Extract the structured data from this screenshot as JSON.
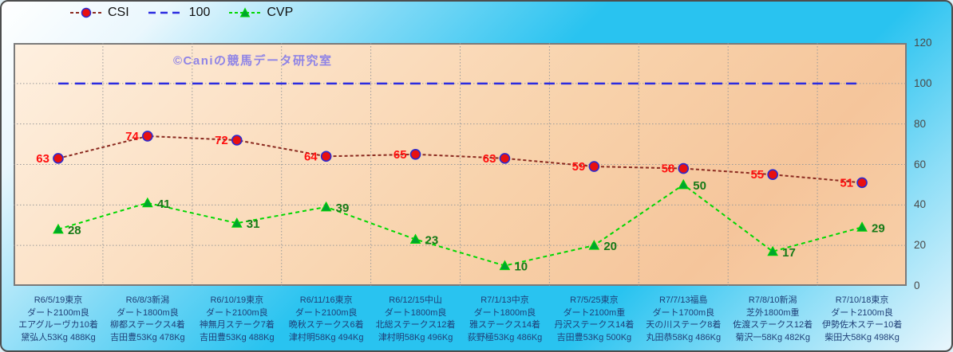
{
  "watermark": "©Caniの競馬データ研究室",
  "legend": {
    "items": [
      {
        "label": "CSI"
      },
      {
        "label": "100"
      },
      {
        "label": "CVP"
      }
    ]
  },
  "y_axis": {
    "ticks": [
      120,
      100,
      80,
      60,
      40,
      20,
      0
    ]
  },
  "colors": {
    "background_cyan": "#29c3f0",
    "plot_peach": "#f8d2ab",
    "csi_line": "#8b2a20",
    "csi_marker_fill": "#e81010",
    "csi_marker_stroke": "#2a2ad0",
    "csi_label": "#ff1010",
    "hundred_line": "#2b2be0",
    "cvp_line": "#00d800",
    "cvp_marker_fill": "#00a52e",
    "cvp_label": "#177a17",
    "x_label_text": "#1f3f77",
    "grid": "#9a9a9a"
  },
  "chart_data": {
    "type": "line",
    "title": "",
    "xlabel": "",
    "ylabel": "",
    "ylim": [
      0,
      120
    ],
    "grid": true,
    "legend_position": "top",
    "categories": [
      [
        "R6/5/19東京",
        "ダート2100m良",
        "エアグルーヴカ10着",
        "黛弘人53Kg 488Kg"
      ],
      [
        "R6/8/3新潟",
        "ダート1800m良",
        "柳都ステークス4着",
        "吉田豊53Kg 478Kg"
      ],
      [
        "R6/10/19東京",
        "ダート2100m良",
        "神無月ステーク7着",
        "吉田豊53Kg 488Kg"
      ],
      [
        "R6/11/16東京",
        "ダート2100m良",
        "晩秋ステークス6着",
        "津村明58Kg 494Kg"
      ],
      [
        "R6/12/15中山",
        "ダート1800m良",
        "北総ステークス12着",
        "津村明58Kg 496Kg"
      ],
      [
        "R7/1/13中京",
        "ダート1800m良",
        "雅ステークス14着",
        "荻野極53Kg 486Kg"
      ],
      [
        "R7/5/25東京",
        "ダート2100m重",
        "丹沢ステークス14着",
        "吉田豊53Kg 500Kg"
      ],
      [
        "R7/7/13福島",
        "ダート1700m良",
        "天の川ステーク8着",
        "丸田恭58Kg 486Kg"
      ],
      [
        "R7/8/10新潟",
        "芝外1800m重",
        "佐渡ステークス12着",
        "菊沢一58Kg 482Kg"
      ],
      [
        "R7/10/18東京",
        "ダート2100m良",
        "伊勢佐木ステー10着",
        "柴田大58Kg 498Kg"
      ]
    ],
    "series": [
      {
        "name": "100",
        "values": [
          100,
          100,
          100,
          100,
          100,
          100,
          100,
          100,
          100,
          100
        ],
        "line_color": "#2b2be0",
        "dash": "13 8",
        "width": 2.5,
        "marker": "none",
        "labels": false
      },
      {
        "name": "CVP",
        "values": [
          28,
          41,
          31,
          39,
          23,
          10,
          20,
          50,
          17,
          29
        ],
        "line_color": "#00d800",
        "dash": "5 4",
        "width": 2,
        "marker": "triangle",
        "marker_fill": "#00a52e",
        "marker_stroke": "#00d800",
        "labels": true,
        "label_side": "right",
        "label_color": "#177a17"
      },
      {
        "name": "CSI",
        "values": [
          63,
          74,
          72,
          64,
          65,
          63,
          59,
          58,
          55,
          51
        ],
        "line_color": "#8b2a20",
        "dash": "4 3",
        "width": 2,
        "marker": "circle",
        "marker_fill": "#e81010",
        "marker_stroke": "#2a2ad0",
        "labels": true,
        "label_side": "left",
        "label_color": "#ff1010"
      }
    ]
  }
}
